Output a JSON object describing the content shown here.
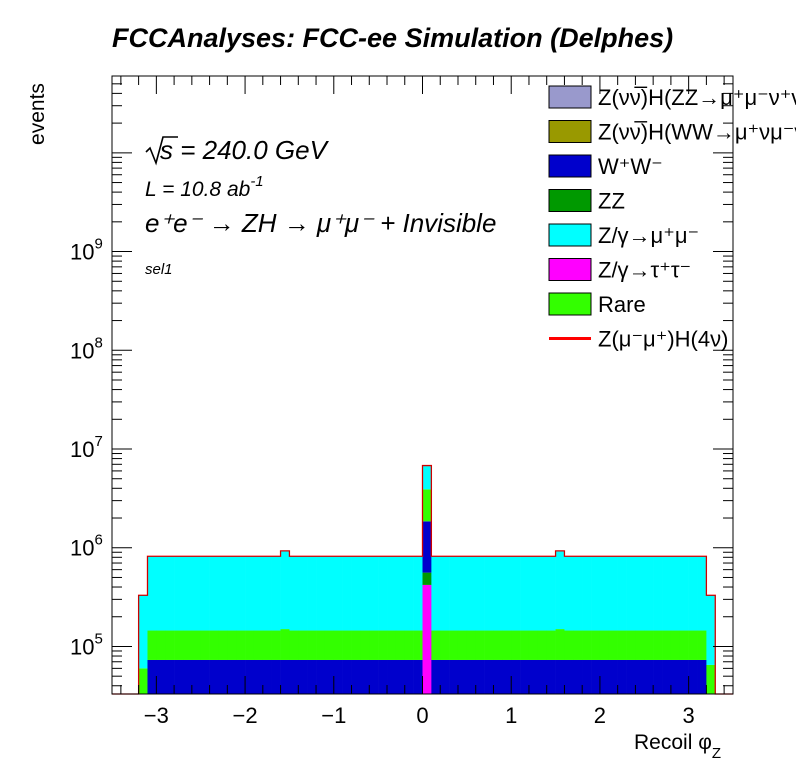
{
  "chart_data": {
    "type": "histogram-stacked",
    "title": "FCCAnalyses: FCC-ee Simulation (Delphes)",
    "xlabel": "Recoil φ",
    "xlabel_sub": "Z",
    "ylabel": "events",
    "xlim": [
      -3.5,
      3.5
    ],
    "ylim": [
      33000,
      60000000000
    ],
    "yscale": "log",
    "x_ticks": [
      -3,
      -2,
      -1,
      0,
      1,
      2,
      3
    ],
    "x_tick_labels": [
      "−3",
      "−2",
      "−1",
      "0",
      "1",
      "2",
      "3"
    ],
    "y_ticks": [
      {
        "value": 100000,
        "base": "10",
        "exp": "5"
      },
      {
        "value": 1000000,
        "base": "10",
        "exp": "6"
      },
      {
        "value": 10000000,
        "base": "10",
        "exp": "7"
      },
      {
        "value": 100000000,
        "base": "10",
        "exp": "8"
      },
      {
        "value": 1000000000,
        "base": "10",
        "exp": "9"
      }
    ],
    "annotations": {
      "sqrt_s": {
        "sym": "s",
        "text": " = 240.0 GeV"
      },
      "lumi": {
        "prefix": "L = 10.8 ab",
        "exp": "-1"
      },
      "process": "e⁺e⁻ → ZH → μ⁺μ⁻ + Invisible",
      "selection": "sel1"
    },
    "legend": {
      "position": "top-right",
      "entries": [
        {
          "label": "Z(νν̅)H(ZZ→μ⁺μ⁻ν⁺ν⁻)",
          "color": "#9999cc",
          "kind": "fill"
        },
        {
          "label": "Z(νν̅)H(WW→μ⁺νμ⁻ν)",
          "color": "#999900",
          "kind": "fill"
        },
        {
          "label": "W⁺W⁻",
          "color": "#0000cc",
          "kind": "fill"
        },
        {
          "label": "ZZ",
          "color": "#009900",
          "kind": "fill"
        },
        {
          "label": "Z/γ→μ⁺μ⁻",
          "color": "#00ffff",
          "kind": "fill"
        },
        {
          "label": "Z/γ→τ⁺τ⁻",
          "color": "#ff00ff",
          "kind": "fill"
        },
        {
          "label": "Rare",
          "color": "#33ff00",
          "kind": "fill"
        },
        {
          "label": "Z(μ⁻μ⁺)H(4ν)",
          "color": "#ff0000",
          "kind": "line"
        }
      ]
    },
    "stack_order": [
      "Z/γ→τ⁺τ⁻",
      "ZZ",
      "W⁺W⁻",
      "Rare",
      "Z/γ→μ⁺μ⁻"
    ],
    "bins": {
      "edges_from_to": [
        -3.5,
        3.5
      ],
      "central_peak": {
        "x": 0.05,
        "width": 0.1,
        "tautau": 420000,
        "zz": 560000,
        "ww": 1850000,
        "rare": 3900000,
        "total": 6800000
      },
      "edge_low": {
        "x_range": [
          -3.2,
          -3.1
        ],
        "total": 330000,
        "rare": 60000
      },
      "edge_high": {
        "x_range": [
          3.2,
          3.3
        ],
        "total": 330000,
        "rare": 65000
      },
      "plateau": {
        "x_range": [
          -3.1,
          3.2
        ],
        "ww": 73000,
        "rare": 145000,
        "total": 820000,
        "ww_to_rare_band": 72000
      },
      "bumps": [
        {
          "x": -1.55,
          "total": 930000,
          "rare": 150000
        },
        {
          "x": 1.55,
          "total": 930000,
          "rare": 150000
        }
      ]
    },
    "grid": false
  }
}
